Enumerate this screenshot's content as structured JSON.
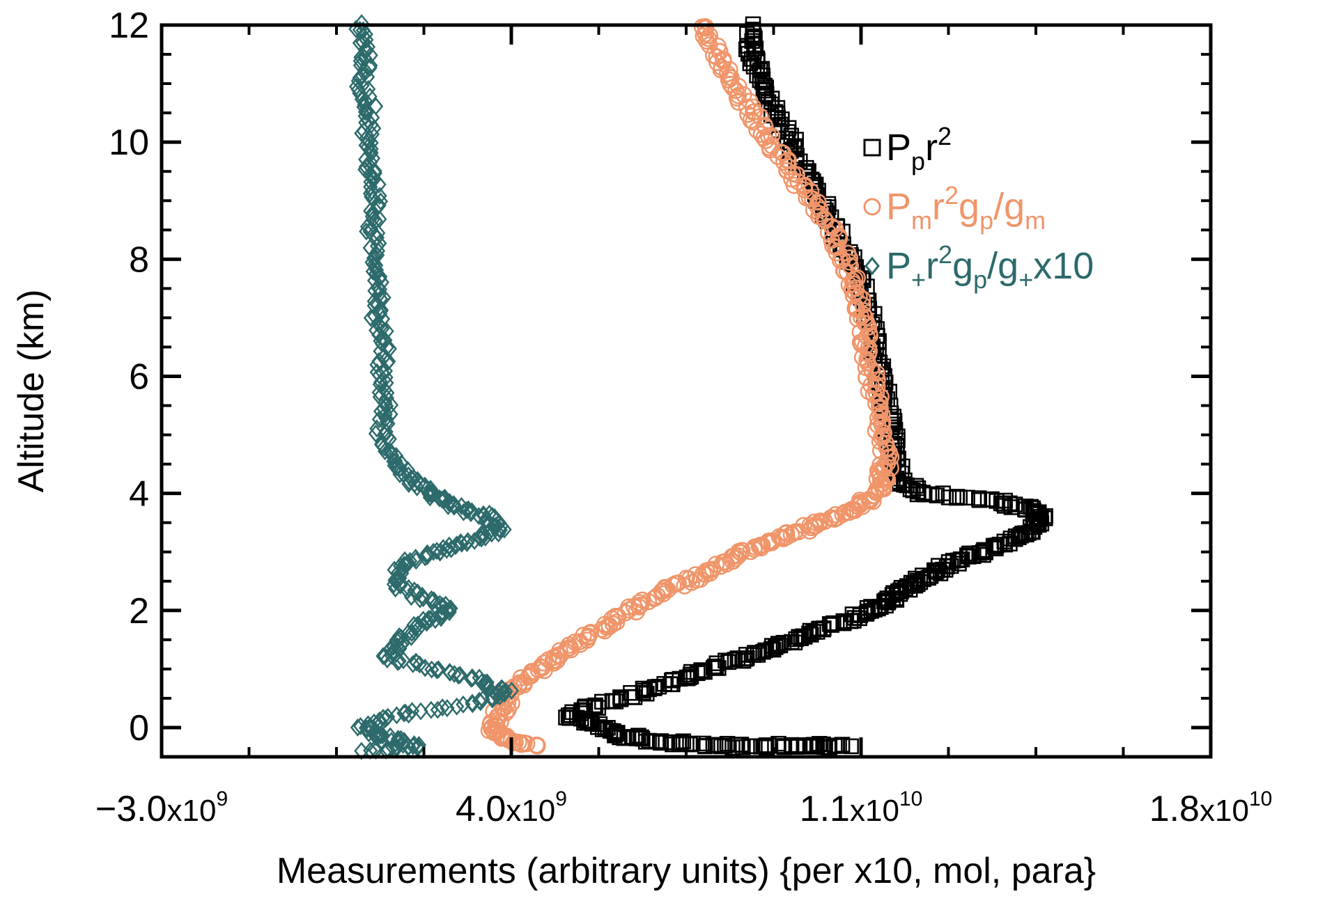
{
  "chart_data": {
    "type": "scatter",
    "xlabel": "Measurements (arbitrary units) {per x10, mol, para}",
    "ylabel": "Altitude (km)",
    "xlim": [
      -3000000000.0,
      18000000000.0
    ],
    "ylim": [
      -0.5,
      12
    ],
    "x_ticks": [
      -3000000000.0,
      4000000000.0,
      11000000000.0,
      18000000000.0
    ],
    "x_tick_labels": [
      {
        "mant": "−3.0",
        "exp": "9"
      },
      {
        "mant": "4.0",
        "exp": "9"
      },
      {
        "mant": "1.1",
        "exp": "10"
      },
      {
        "mant": "1.8",
        "exp": "10"
      }
    ],
    "y_ticks": [
      0,
      2,
      4,
      6,
      8,
      10,
      12
    ],
    "y_tick_labels": [
      "0",
      "2",
      "4",
      "6",
      "8",
      "10",
      "12"
    ],
    "legend_position": "top-right",
    "grid": false,
    "series": [
      {
        "id": "pp",
        "marker": "square",
        "color": "#000000",
        "legend": [
          [
            "P",
            ""
          ],
          [
            "p",
            "sub"
          ],
          [
            "r",
            ""
          ],
          [
            "2",
            "sup"
          ]
        ],
        "points": [
          [
            8800000000.0,
            12.0
          ],
          [
            8800000000.0,
            11.5
          ],
          [
            9000000000.0,
            11.0
          ],
          [
            9300000000.0,
            10.5
          ],
          [
            9600000000.0,
            10.0
          ],
          [
            9900000000.0,
            9.5
          ],
          [
            10200000000.0,
            9.0
          ],
          [
            10500000000.0,
            8.5
          ],
          [
            10800000000.0,
            8.0
          ],
          [
            11000000000.0,
            7.5
          ],
          [
            11200000000.0,
            7.0
          ],
          [
            11300000000.0,
            6.5
          ],
          [
            11400000000.0,
            6.0
          ],
          [
            11500000000.0,
            5.5
          ],
          [
            11600000000.0,
            5.0
          ],
          [
            11700000000.0,
            4.6
          ],
          [
            11800000000.0,
            4.2
          ],
          [
            12200000000.0,
            4.0
          ],
          [
            13500000000.0,
            3.9
          ],
          [
            14300000000.0,
            3.75
          ],
          [
            14600000000.0,
            3.6
          ],
          [
            14500000000.0,
            3.4
          ],
          [
            14000000000.0,
            3.2
          ],
          [
            13400000000.0,
            3.0
          ],
          [
            12800000000.0,
            2.8
          ],
          [
            12300000000.0,
            2.6
          ],
          [
            11900000000.0,
            2.4
          ],
          [
            11600000000.0,
            2.2
          ],
          [
            11200000000.0,
            2.0
          ],
          [
            10600000000.0,
            1.8
          ],
          [
            10000000000.0,
            1.6
          ],
          [
            9400000000.0,
            1.4
          ],
          [
            8700000000.0,
            1.2
          ],
          [
            8000000000.0,
            1.0
          ],
          [
            7300000000.0,
            0.8
          ],
          [
            6600000000.0,
            0.6
          ],
          [
            5800000000.0,
            0.4
          ],
          [
            5200000000.0,
            0.2
          ],
          [
            5600000000.0,
            0.05
          ],
          [
            6300000000.0,
            -0.15
          ],
          [
            7100000000.0,
            -0.25
          ],
          [
            8000000000.0,
            -0.3
          ],
          [
            9000000000.0,
            -0.32
          ],
          [
            10000000000.0,
            -0.3
          ],
          [
            10800000000.0,
            -0.32
          ]
        ]
      },
      {
        "id": "pm",
        "marker": "circle",
        "color": "#f0956a",
        "legend": [
          [
            "P",
            ""
          ],
          [
            "m",
            "sub"
          ],
          [
            "r",
            ""
          ],
          [
            "2",
            "sup"
          ],
          [
            "g",
            ""
          ],
          [
            "p",
            "sub"
          ],
          [
            "/g",
            ""
          ],
          [
            "m",
            "sub"
          ]
        ],
        "points": [
          [
            7800000000.0,
            12.0
          ],
          [
            8100000000.0,
            11.5
          ],
          [
            8400000000.0,
            11.0
          ],
          [
            8800000000.0,
            10.5
          ],
          [
            9200000000.0,
            10.0
          ],
          [
            9600000000.0,
            9.5
          ],
          [
            10000000000.0,
            9.0
          ],
          [
            10400000000.0,
            8.5
          ],
          [
            10700000000.0,
            8.0
          ],
          [
            10900000000.0,
            7.5
          ],
          [
            11000000000.0,
            7.0
          ],
          [
            11100000000.0,
            6.5
          ],
          [
            11200000000.0,
            6.0
          ],
          [
            11300000000.0,
            5.5
          ],
          [
            11400000000.0,
            5.0
          ],
          [
            11500000000.0,
            4.5
          ],
          [
            11400000000.0,
            4.2
          ],
          [
            11200000000.0,
            3.9
          ],
          [
            10800000000.0,
            3.7
          ],
          [
            10200000000.0,
            3.5
          ],
          [
            9600000000.0,
            3.3
          ],
          [
            9000000000.0,
            3.1
          ],
          [
            8400000000.0,
            2.9
          ],
          [
            7800000000.0,
            2.6
          ],
          [
            7200000000.0,
            2.4
          ],
          [
            6600000000.0,
            2.1
          ],
          [
            6000000000.0,
            1.8
          ],
          [
            5400000000.0,
            1.5
          ],
          [
            4900000000.0,
            1.2
          ],
          [
            4400000000.0,
            0.9
          ],
          [
            4000000000.0,
            0.6
          ],
          [
            3800000000.0,
            0.3
          ],
          [
            3600000000.0,
            0.0
          ],
          [
            3900000000.0,
            -0.2
          ],
          [
            4500000000.0,
            -0.3
          ]
        ]
      },
      {
        "id": "pplus",
        "marker": "diamond",
        "color": "#2d6a6b",
        "legend": [
          [
            "P",
            ""
          ],
          [
            "+",
            "sub"
          ],
          [
            "r",
            ""
          ],
          [
            "2",
            "sup"
          ],
          [
            "g",
            ""
          ],
          [
            "p",
            "sub"
          ],
          [
            "/g",
            ""
          ],
          [
            "+",
            "sub"
          ],
          [
            "x10",
            ""
          ]
        ],
        "points": [
          [
            1000000000.0,
            12.0
          ],
          [
            1100000000.0,
            11.5
          ],
          [
            1000000000.0,
            11.0
          ],
          [
            1200000000.0,
            10.5
          ],
          [
            1100000000.0,
            10.0
          ],
          [
            1200000000.0,
            9.5
          ],
          [
            1300000000.0,
            9.0
          ],
          [
            1200000000.0,
            8.5
          ],
          [
            1300000000.0,
            8.0
          ],
          [
            1400000000.0,
            7.5
          ],
          [
            1300000000.0,
            7.0
          ],
          [
            1500000000.0,
            6.5
          ],
          [
            1400000000.0,
            6.0
          ],
          [
            1500000000.0,
            5.5
          ],
          [
            1400000000.0,
            5.0
          ],
          [
            1700000000.0,
            4.5
          ],
          [
            2000000000.0,
            4.2
          ],
          [
            2400000000.0,
            4.0
          ],
          [
            2800000000.0,
            3.8
          ],
          [
            3500000000.0,
            3.6
          ],
          [
            3800000000.0,
            3.4
          ],
          [
            3200000000.0,
            3.2
          ],
          [
            2500000000.0,
            3.0
          ],
          [
            1800000000.0,
            2.8
          ],
          [
            1600000000.0,
            2.5
          ],
          [
            2200000000.0,
            2.2
          ],
          [
            2800000000.0,
            2.0
          ],
          [
            2200000000.0,
            1.8
          ],
          [
            1800000000.0,
            1.5
          ],
          [
            1500000000.0,
            1.2
          ],
          [
            2500000000.0,
            1.0
          ],
          [
            3400000000.0,
            0.8
          ],
          [
            3900000000.0,
            0.6
          ],
          [
            3200000000.0,
            0.4
          ],
          [
            1600000000.0,
            0.2
          ],
          [
            1000000000.0,
            0.0
          ],
          [
            1500000000.0,
            -0.2
          ],
          [
            2200000000.0,
            -0.3
          ],
          [
            1000000000.0,
            -0.4
          ]
        ]
      }
    ]
  }
}
